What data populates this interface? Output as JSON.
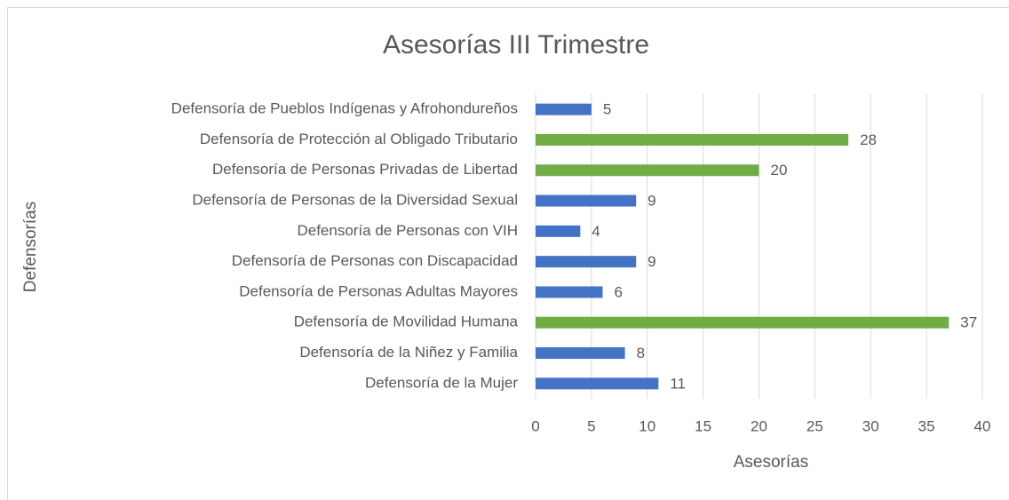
{
  "chart_data": {
    "type": "bar",
    "orientation": "horizontal",
    "title": "Asesorías III Trimestre",
    "x_label": "Asesorías",
    "y_label": "Defensorías",
    "categories": [
      "Defensoría de Pueblos Indígenas y Afrohondureños",
      "Defensoría de Protección al Obligado Tributario",
      "Defensoría de Personas Privadas de Libertad",
      "Defensoría de Personas de la Diversidad Sexual",
      "Defensoría de Personas con VIH",
      "Defensoría de Personas con Discapacidad",
      "Defensoría de Personas Adultas Mayores",
      "Defensoría de Movilidad Humana",
      "Defensoría de la Niñez y Familia",
      "Defensoría de la Mujer"
    ],
    "values": [
      5,
      28,
      20,
      9,
      4,
      9,
      6,
      37,
      8,
      11
    ],
    "colors": [
      "#4472c4",
      "#70ad47",
      "#70ad47",
      "#4472c4",
      "#4472c4",
      "#4472c4",
      "#4472c4",
      "#70ad47",
      "#4472c4",
      "#4472c4"
    ],
    "xlim": [
      0,
      40
    ],
    "xticks": [
      0,
      5,
      10,
      15,
      20,
      25,
      30,
      35,
      40
    ],
    "grid": true
  }
}
